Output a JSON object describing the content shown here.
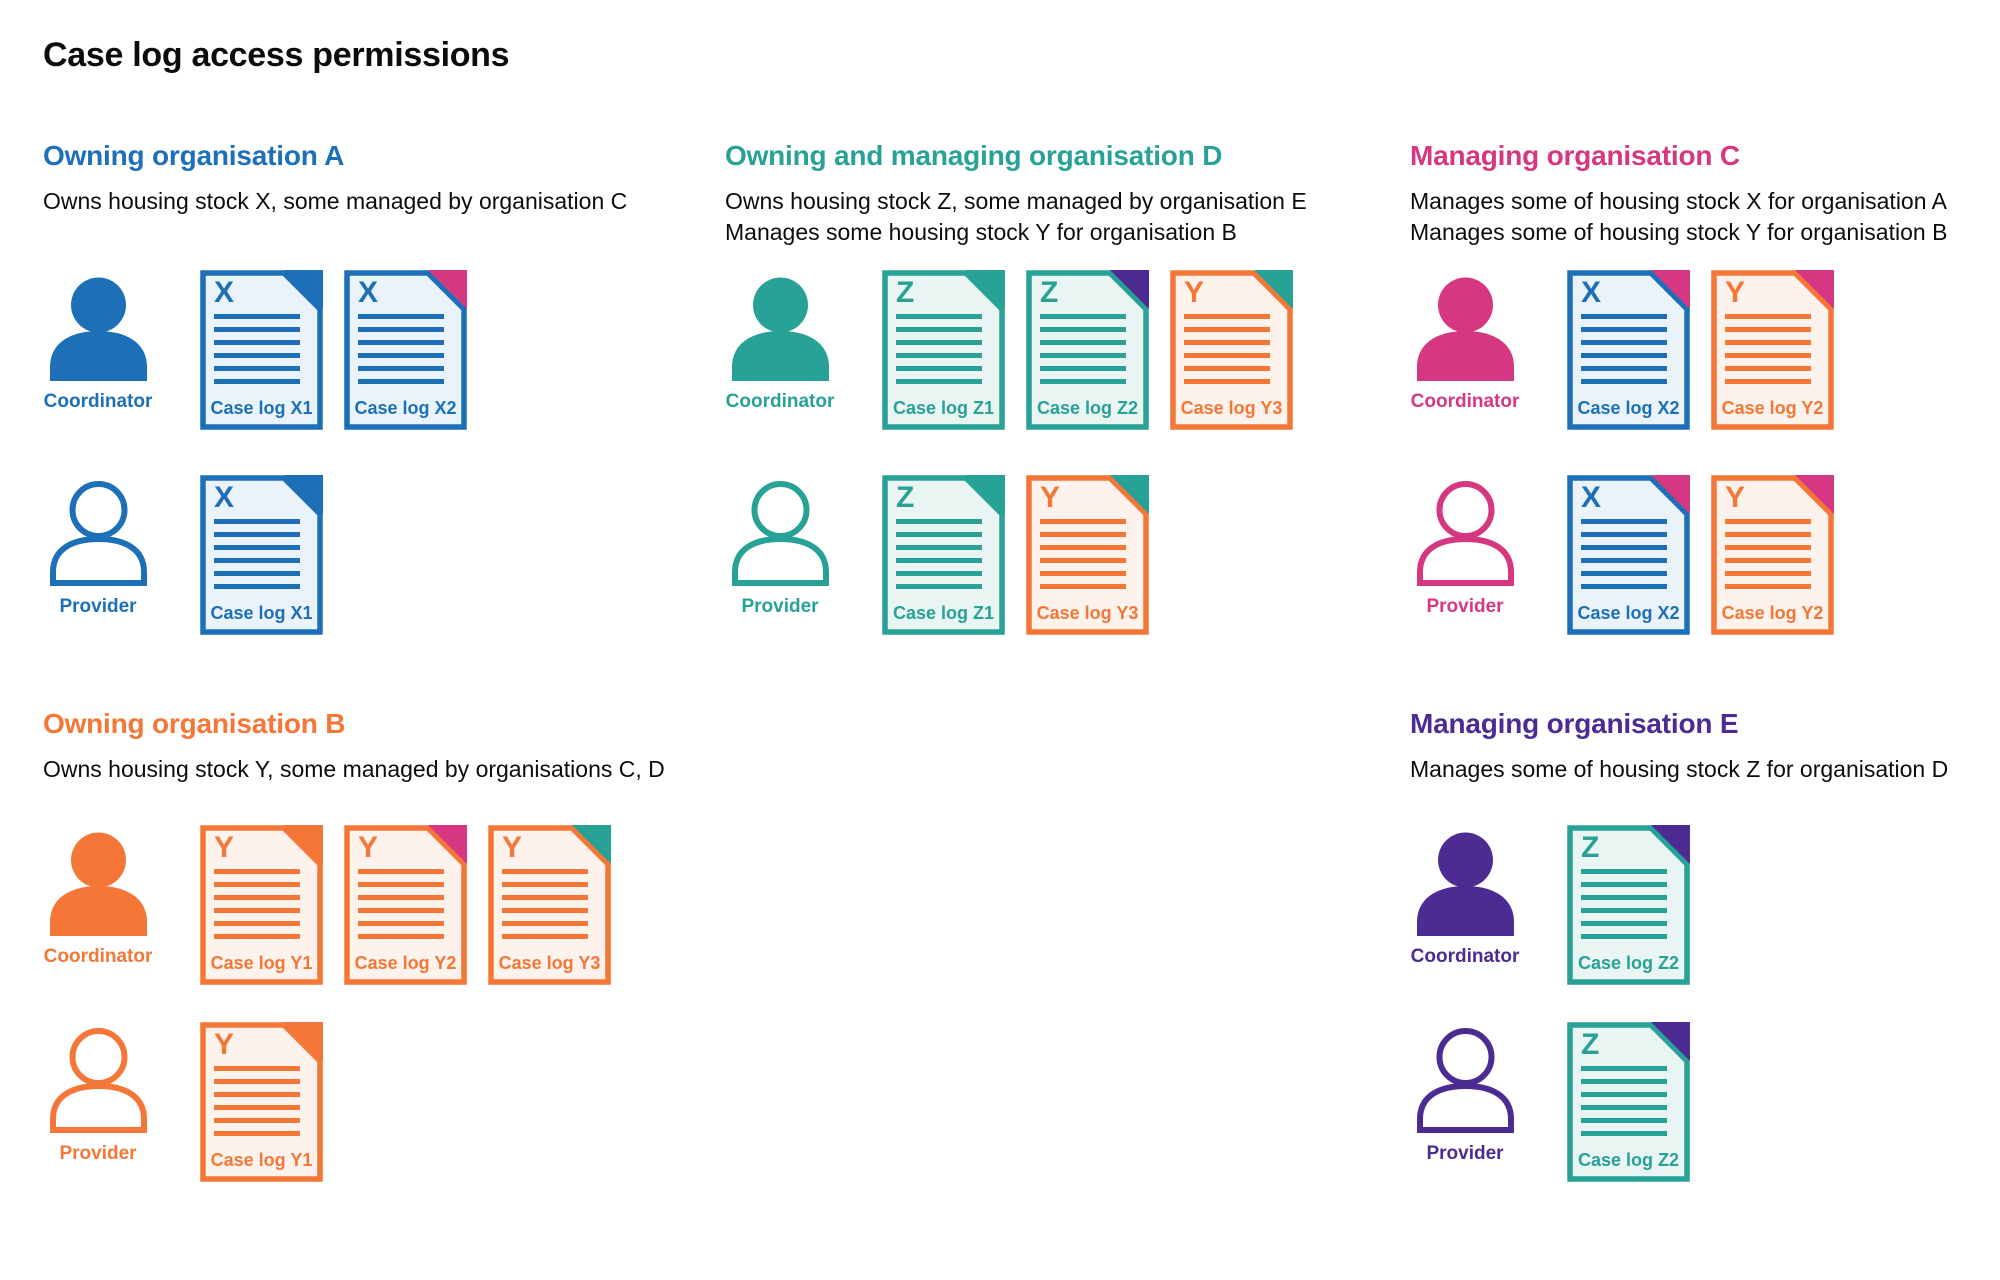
{
  "title": "Case log access permissions",
  "colors": {
    "blue": "#1d70b8",
    "teal": "#28a197",
    "pink": "#d53880",
    "orange": "#f47738",
    "purple": "#4c2c92",
    "blue_light": "#eaf2fa",
    "teal_light": "#e9f5f3",
    "orange_light": "#fdf2ec",
    "text": "#0b0c0c"
  },
  "sections": [
    {
      "heading": "Owning organisation A",
      "color": "blue",
      "description_lines": [
        "Owns housing stock X, some managed by organisation C"
      ],
      "rows": [
        {
          "person": {
            "role": "Coordinator",
            "variant": "filled"
          },
          "documents": [
            {
              "letter": "X",
              "label": "Case log X1",
              "doc_color": "blue",
              "fold_color": "blue"
            },
            {
              "letter": "X",
              "label": "Case log X2",
              "doc_color": "blue",
              "fold_color": "pink"
            }
          ]
        },
        {
          "person": {
            "role": "Provider",
            "variant": "outline"
          },
          "documents": [
            {
              "letter": "X",
              "label": "Case log X1",
              "doc_color": "blue",
              "fold_color": "blue"
            }
          ]
        }
      ]
    },
    {
      "heading": "Owning and managing organisation D",
      "color": "teal",
      "description_lines": [
        "Owns housing stock Z, some managed by organisation E",
        "Manages some housing stock Y for organisation B"
      ],
      "rows": [
        {
          "person": {
            "role": "Coordinator",
            "variant": "filled"
          },
          "documents": [
            {
              "letter": "Z",
              "label": "Case log Z1",
              "doc_color": "teal",
              "fold_color": "teal"
            },
            {
              "letter": "Z",
              "label": "Case log Z2",
              "doc_color": "teal",
              "fold_color": "purple"
            },
            {
              "letter": "Y",
              "label": "Case log Y3",
              "doc_color": "orange",
              "fold_color": "teal"
            }
          ]
        },
        {
          "person": {
            "role": "Provider",
            "variant": "outline"
          },
          "documents": [
            {
              "letter": "Z",
              "label": "Case log Z1",
              "doc_color": "teal",
              "fold_color": "teal"
            },
            {
              "letter": "Y",
              "label": "Case log Y3",
              "doc_color": "orange",
              "fold_color": "teal"
            }
          ]
        }
      ]
    },
    {
      "heading": "Managing organisation C",
      "color": "pink",
      "description_lines": [
        "Manages some of housing stock X for organisation A",
        "Manages some of housing stock Y for organisation B"
      ],
      "rows": [
        {
          "person": {
            "role": "Coordinator",
            "variant": "filled"
          },
          "documents": [
            {
              "letter": "X",
              "label": "Case log X2",
              "doc_color": "blue",
              "fold_color": "pink"
            },
            {
              "letter": "Y",
              "label": "Case log Y2",
              "doc_color": "orange",
              "fold_color": "pink"
            }
          ]
        },
        {
          "person": {
            "role": "Provider",
            "variant": "outline"
          },
          "documents": [
            {
              "letter": "X",
              "label": "Case log X2",
              "doc_color": "blue",
              "fold_color": "pink"
            },
            {
              "letter": "Y",
              "label": "Case log Y2",
              "doc_color": "orange",
              "fold_color": "pink"
            }
          ]
        }
      ]
    },
    {
      "heading": "Owning organisation B",
      "color": "orange",
      "description_lines": [
        "Owns housing stock Y, some managed by organisations C, D"
      ],
      "rows": [
        {
          "person": {
            "role": "Coordinator",
            "variant": "filled"
          },
          "documents": [
            {
              "letter": "Y",
              "label": "Case log Y1",
              "doc_color": "orange",
              "fold_color": "orange"
            },
            {
              "letter": "Y",
              "label": "Case log Y2",
              "doc_color": "orange",
              "fold_color": "pink"
            },
            {
              "letter": "Y",
              "label": "Case log Y3",
              "doc_color": "orange",
              "fold_color": "teal"
            }
          ]
        },
        {
          "person": {
            "role": "Provider",
            "variant": "outline"
          },
          "documents": [
            {
              "letter": "Y",
              "label": "Case log Y1",
              "doc_color": "orange",
              "fold_color": "orange"
            }
          ]
        }
      ]
    },
    {
      "heading": "Managing organisation E",
      "color": "purple",
      "description_lines": [
        "Manages some of housing stock Z for organisation D"
      ],
      "rows": [
        {
          "person": {
            "role": "Coordinator",
            "variant": "filled"
          },
          "documents": [
            {
              "letter": "Z",
              "label": "Case log Z2",
              "doc_color": "teal",
              "fold_color": "purple"
            }
          ]
        },
        {
          "person": {
            "role": "Provider",
            "variant": "outline"
          },
          "documents": [
            {
              "letter": "Z",
              "label": "Case log Z2",
              "doc_color": "teal",
              "fold_color": "purple"
            }
          ]
        }
      ]
    }
  ]
}
